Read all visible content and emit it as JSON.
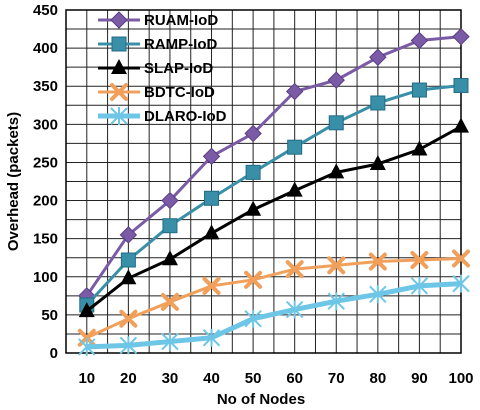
{
  "chart_data": {
    "type": "line",
    "title": "",
    "xlabel": "No of Nodes",
    "ylabel": "Overhead (packets)",
    "x": [
      10,
      20,
      30,
      40,
      50,
      60,
      70,
      80,
      90,
      100
    ],
    "xlim": [
      10,
      100
    ],
    "ylim": [
      0,
      450
    ],
    "yticks": [
      0,
      50,
      100,
      150,
      200,
      250,
      300,
      350,
      400,
      450
    ],
    "grid": true,
    "legend_position": "top-left",
    "series": [
      {
        "name": "RUAM-IoD",
        "color": "#7b5ba6",
        "marker": "diamond",
        "values": [
          75,
          155,
          200,
          258,
          288,
          343,
          358,
          388,
          410,
          415
        ]
      },
      {
        "name": "RAMP-IoD",
        "color": "#3a8fa8",
        "marker": "square",
        "values": [
          63,
          122,
          167,
          203,
          237,
          270,
          302,
          328,
          345,
          351
        ]
      },
      {
        "name": "SLAP-IoD",
        "color": "#000000",
        "marker": "triangle",
        "values": [
          55,
          98,
          123,
          157,
          188,
          213,
          237,
          248,
          267,
          297
        ]
      },
      {
        "name": "BDTC-IoD",
        "color": "#f0a05a",
        "marker": "x",
        "values": [
          20,
          45,
          67,
          88,
          96,
          110,
          115,
          120,
          122,
          124
        ]
      },
      {
        "name": "DLARO-IoD",
        "color": "#6ec6e6",
        "marker": "star",
        "values": [
          8,
          10,
          15,
          20,
          45,
          57,
          68,
          77,
          88,
          91
        ]
      }
    ]
  }
}
